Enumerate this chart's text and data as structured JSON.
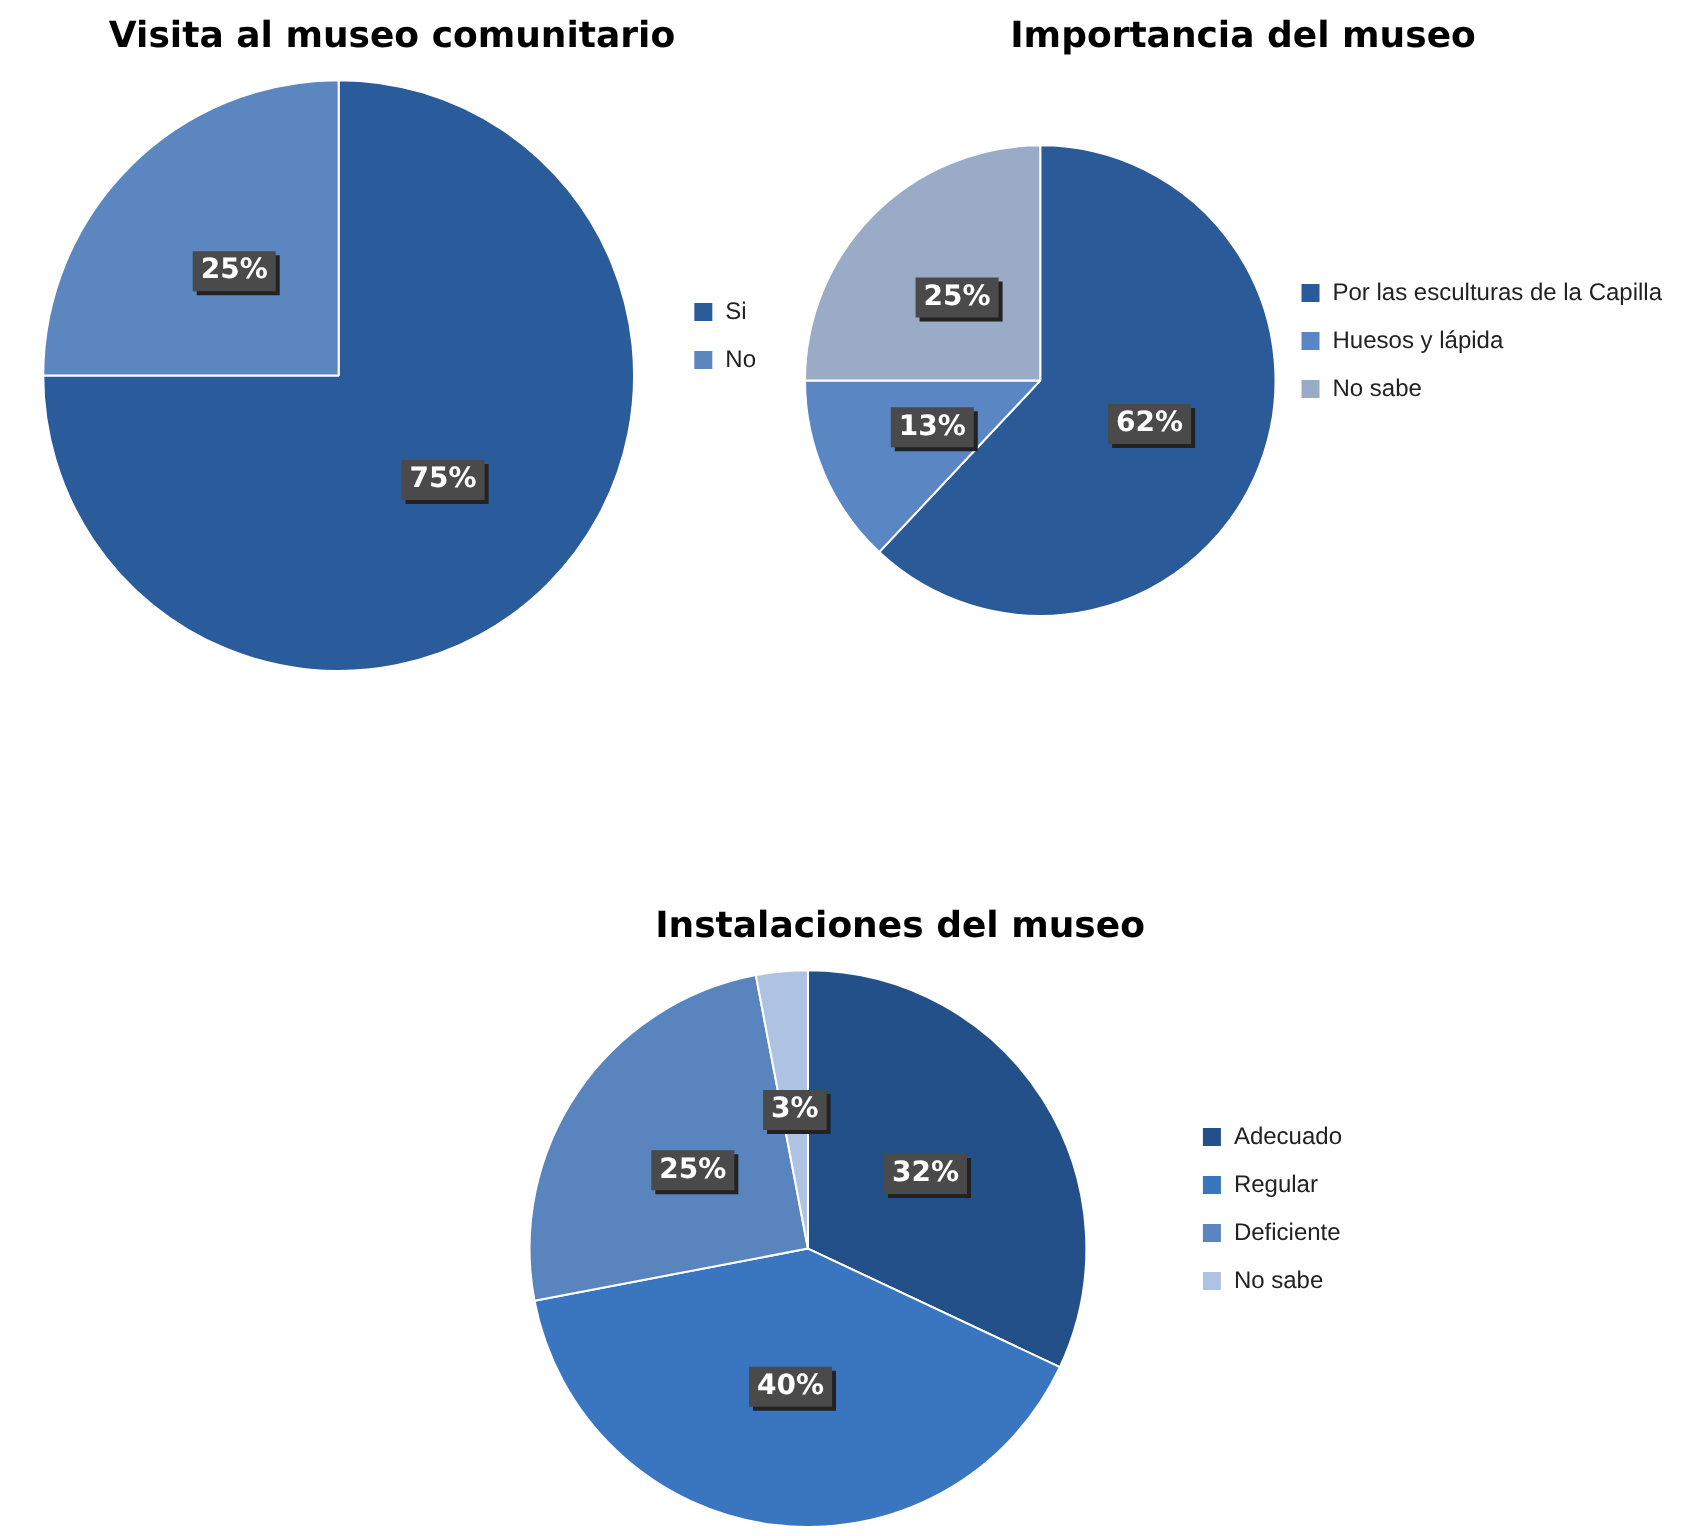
{
  "chart_data": [
    {
      "type": "pie",
      "title": "Visita al museo comunitario",
      "categories": [
        "Si",
        "No"
      ],
      "values": [
        75,
        25
      ],
      "colors": [
        "#2a5b9a",
        "#5b86c0"
      ],
      "value_labels": [
        "75%",
        "25%"
      ],
      "legend": "right"
    },
    {
      "type": "pie",
      "title": "Importancia del museo",
      "categories": [
        "Por las esculturas de la Capilla",
        "Huesos y lápida",
        "No sabe"
      ],
      "values": [
        62,
        13,
        25
      ],
      "colors": [
        "#2a5a98",
        "#5b86c4",
        "#9aabc8"
      ],
      "value_labels": [
        "62%",
        "13%",
        "25%"
      ],
      "legend": "right"
    },
    {
      "type": "pie",
      "title": "Instalaciones del museo",
      "categories": [
        "Adecuado",
        "Regular",
        "Deficiente",
        "No sabe"
      ],
      "values": [
        32,
        40,
        25,
        3
      ],
      "colors": [
        "#24508a",
        "#3a75c0",
        "#5a84bd",
        "#aec3e2"
      ],
      "value_labels": [
        "32%",
        "40%",
        "25%",
        "3%"
      ],
      "legend": "right"
    }
  ]
}
